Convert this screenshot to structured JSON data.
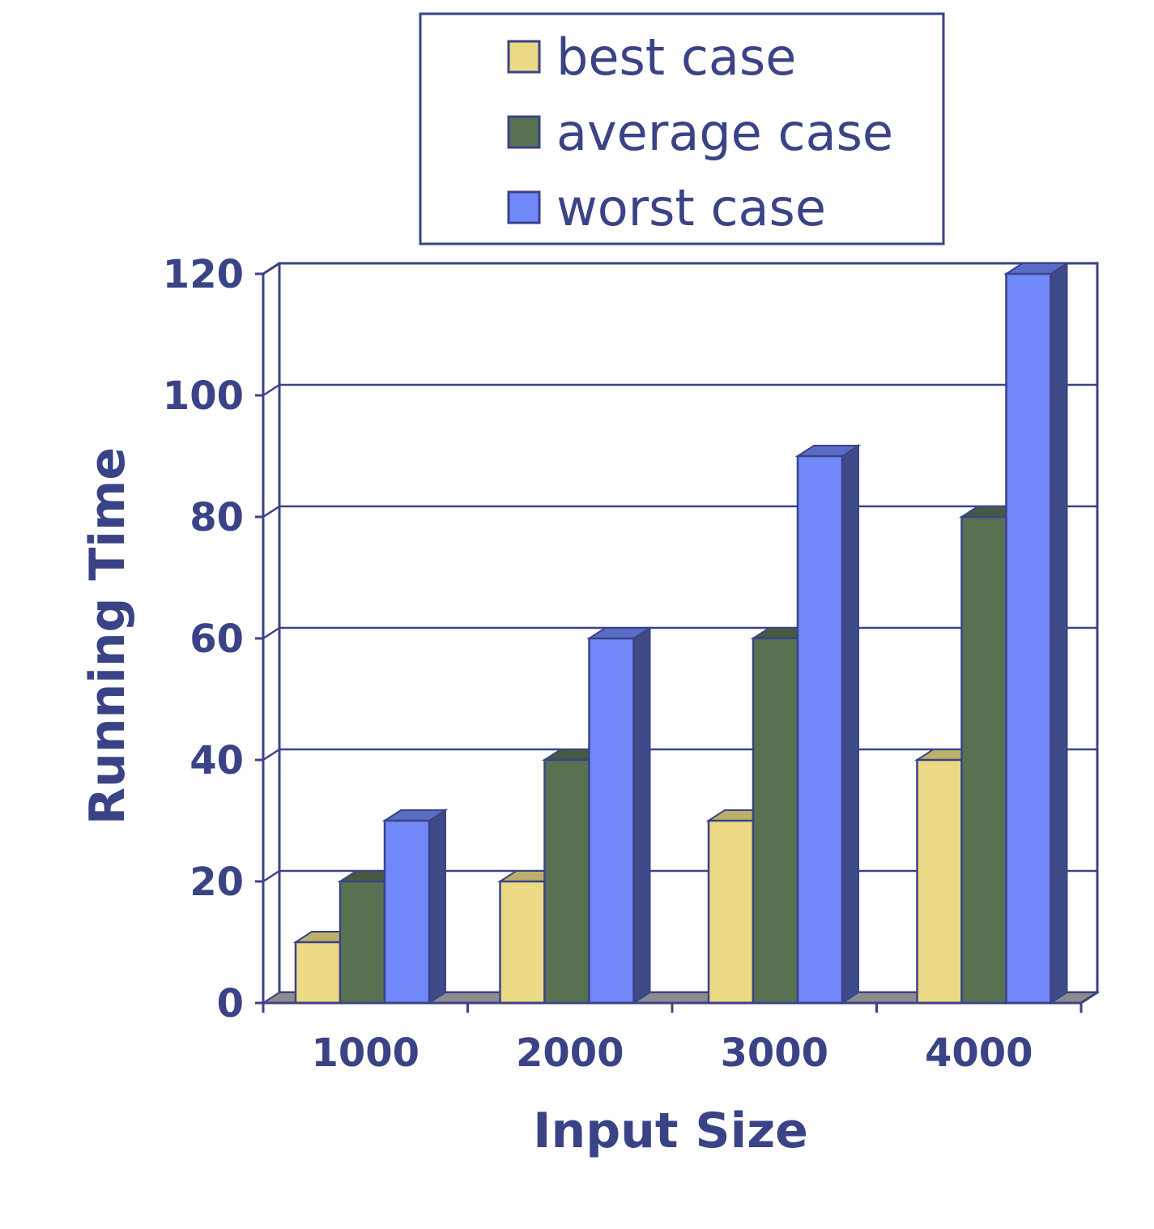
{
  "chart_data": {
    "type": "bar",
    "categories": [
      "1000",
      "2000",
      "3000",
      "4000"
    ],
    "series": [
      {
        "name": "best case",
        "values": [
          10,
          20,
          30,
          40
        ],
        "color": "#ecd985"
      },
      {
        "name": "average case",
        "values": [
          20,
          40,
          60,
          80
        ],
        "color": "#587151"
      },
      {
        "name": "worst case",
        "values": [
          30,
          60,
          90,
          120
        ],
        "color": "#7088f8"
      }
    ],
    "title": "",
    "xlabel": "Input Size",
    "ylabel": "Running Time",
    "ylim": [
      0,
      120
    ],
    "yticks": [
      "0",
      "20",
      "40",
      "60",
      "80",
      "100",
      "120"
    ],
    "grid": true,
    "legend_position": "top-center",
    "axis_color": "#3b4387"
  }
}
